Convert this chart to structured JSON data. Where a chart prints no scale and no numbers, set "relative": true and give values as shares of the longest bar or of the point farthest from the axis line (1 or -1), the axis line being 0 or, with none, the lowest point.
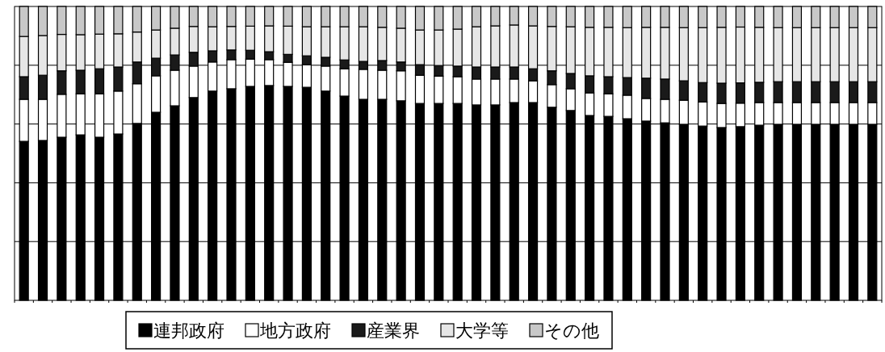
{
  "chart_data": {
    "type": "bar",
    "stacked": true,
    "relative": true,
    "grid": "y",
    "legend": "bottom",
    "categories": [
      null,
      null,
      null,
      null,
      null,
      null,
      null,
      null,
      null,
      null,
      null,
      null,
      null,
      null,
      null,
      null,
      null,
      null,
      null,
      null,
      null,
      null,
      null,
      null,
      null,
      null,
      null,
      null,
      null,
      null,
      null,
      null,
      null,
      null,
      null,
      null,
      null,
      null,
      null,
      null,
      null,
      null,
      null,
      null,
      null,
      null
    ],
    "series": [
      {
        "name": "連邦政府",
        "color": "#000000",
        "values": [
          0.541,
          0.544,
          0.555,
          0.563,
          0.555,
          0.566,
          0.602,
          0.64,
          0.662,
          0.69,
          0.712,
          0.72,
          0.728,
          0.731,
          0.728,
          0.725,
          0.712,
          0.695,
          0.684,
          0.684,
          0.679,
          0.67,
          0.67,
          0.67,
          0.665,
          0.665,
          0.673,
          0.673,
          0.657,
          0.646,
          0.629,
          0.626,
          0.618,
          0.61,
          0.604,
          0.599,
          0.593,
          0.588,
          0.591,
          0.596,
          0.599,
          0.599,
          0.599,
          0.599,
          0.599,
          0.599
        ]
      },
      {
        "name": "地方政府",
        "color": "#ffffff",
        "values": [
          0.143,
          0.14,
          0.146,
          0.14,
          0.148,
          0.146,
          0.135,
          0.124,
          0.121,
          0.107,
          0.099,
          0.099,
          0.093,
          0.088,
          0.082,
          0.077,
          0.085,
          0.093,
          0.102,
          0.099,
          0.102,
          0.096,
          0.093,
          0.091,
          0.088,
          0.088,
          0.08,
          0.074,
          0.077,
          0.074,
          0.077,
          0.077,
          0.08,
          0.077,
          0.08,
          0.082,
          0.082,
          0.082,
          0.08,
          0.077,
          0.074,
          0.074,
          0.074,
          0.074,
          0.074,
          0.074
        ]
      },
      {
        "name": "産業界",
        "color": "#1a1a1a",
        "values": [
          0.077,
          0.082,
          0.08,
          0.08,
          0.085,
          0.082,
          0.074,
          0.06,
          0.052,
          0.047,
          0.038,
          0.033,
          0.03,
          0.027,
          0.027,
          0.03,
          0.03,
          0.03,
          0.027,
          0.033,
          0.03,
          0.036,
          0.036,
          0.036,
          0.041,
          0.041,
          0.041,
          0.041,
          0.047,
          0.052,
          0.058,
          0.058,
          0.06,
          0.069,
          0.069,
          0.066,
          0.066,
          0.069,
          0.069,
          0.069,
          0.071,
          0.071,
          0.071,
          0.071,
          0.071,
          0.071
        ]
      },
      {
        "name": "大学等",
        "color": "#e6e6e6",
        "values": [
          0.137,
          0.135,
          0.124,
          0.121,
          0.118,
          0.113,
          0.102,
          0.096,
          0.091,
          0.088,
          0.082,
          0.08,
          0.082,
          0.088,
          0.096,
          0.099,
          0.104,
          0.113,
          0.118,
          0.113,
          0.115,
          0.118,
          0.121,
          0.126,
          0.137,
          0.14,
          0.143,
          0.146,
          0.151,
          0.159,
          0.165,
          0.168,
          0.17,
          0.173,
          0.176,
          0.181,
          0.187,
          0.19,
          0.19,
          0.187,
          0.184,
          0.184,
          0.184,
          0.184,
          0.184,
          0.184
        ]
      },
      {
        "name": "その他",
        "color": "#c8c8c8",
        "values": [
          0.102,
          0.099,
          0.095,
          0.096,
          0.094,
          0.093,
          0.087,
          0.08,
          0.074,
          0.068,
          0.069,
          0.068,
          0.067,
          0.066,
          0.067,
          0.069,
          0.069,
          0.069,
          0.069,
          0.071,
          0.074,
          0.08,
          0.08,
          0.077,
          0.069,
          0.066,
          0.063,
          0.066,
          0.068,
          0.069,
          0.071,
          0.071,
          0.072,
          0.071,
          0.071,
          0.072,
          0.072,
          0.071,
          0.07,
          0.071,
          0.072,
          0.072,
          0.072,
          0.072,
          0.072,
          0.072
        ]
      }
    ]
  }
}
